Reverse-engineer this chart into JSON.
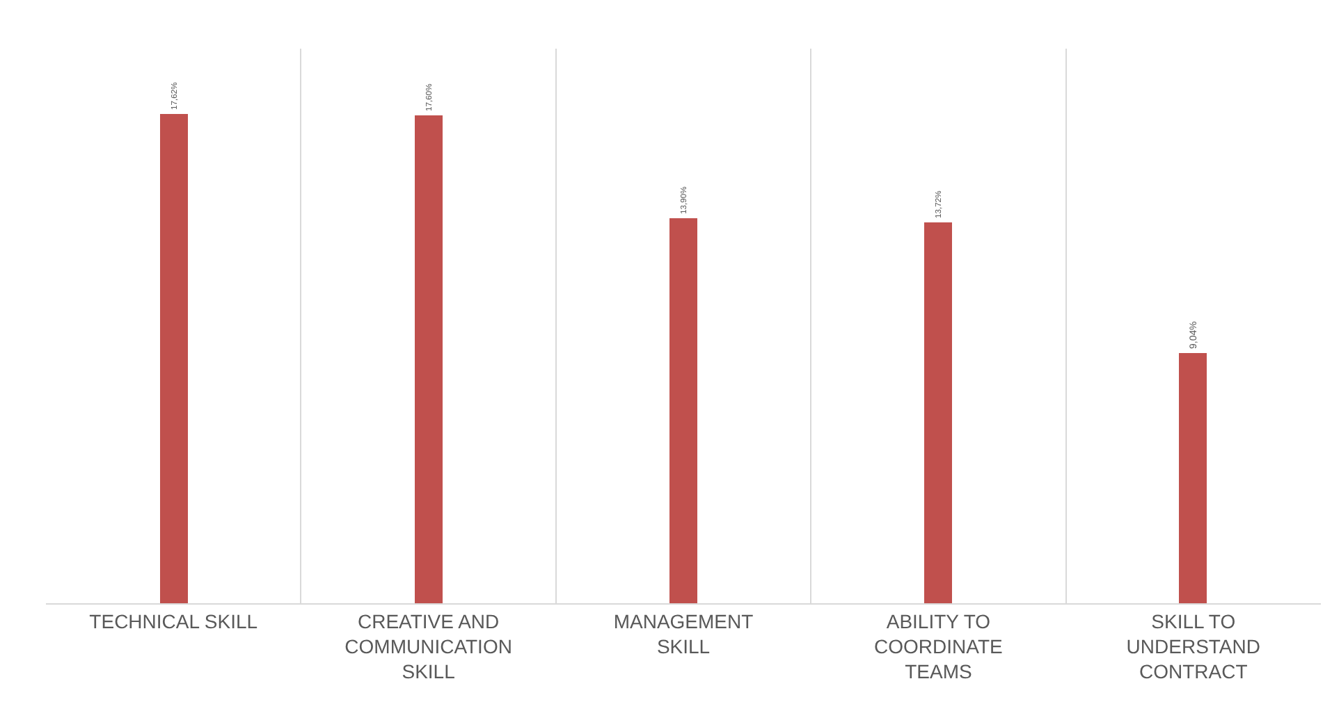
{
  "chart_data": {
    "type": "bar",
    "categories": [
      "TECHNICAL SKILL",
      "CREATIVE AND COMMUNICATION SKILL",
      "MANAGEMENT SKILL",
      "ABILITY TO COORDINATE TEAMS",
      "SKILL TO UNDERSTAND CONTRACT"
    ],
    "values": [
      17.62,
      17.6,
      13.9,
      13.72,
      9.04
    ],
    "value_labels": [
      "17,62%",
      "17,60%",
      "13,90%",
      "13,72%",
      "9,04%"
    ],
    "color": "#c0504d",
    "ylim": [
      0,
      20
    ],
    "tick_labels": "x",
    "grid": "x",
    "legend": false
  }
}
